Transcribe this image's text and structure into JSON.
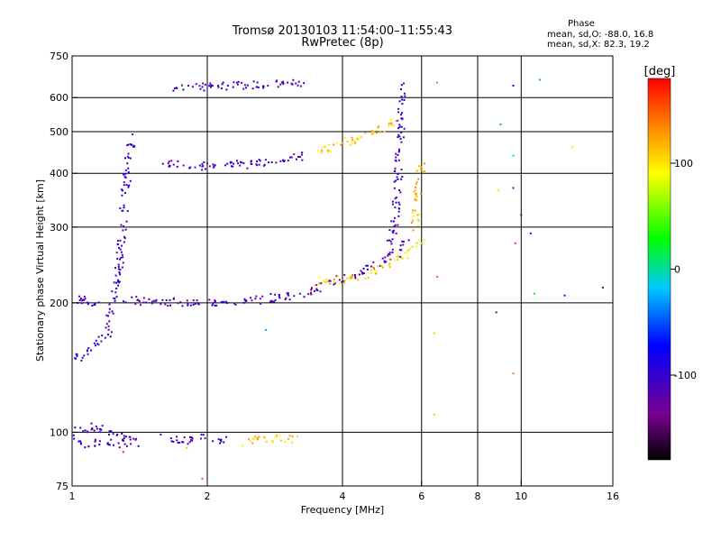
{
  "chart_data": {
    "type": "scatter",
    "title": "Tromsø 20130103 11:54:00–11:55:43",
    "subtitle": "RwPretec (8p)",
    "xlabel": "Frequency [MHz]",
    "ylabel": "Stationary phase Virtual Height [km]",
    "x_scale": "log",
    "y_scale": "log",
    "xlim": [
      1,
      16
    ],
    "ylim": [
      75,
      750
    ],
    "x_ticks": [
      "1",
      "2",
      "4",
      "6",
      "8",
      "10",
      "16"
    ],
    "x_tick_values": [
      1,
      2,
      4,
      6,
      8,
      10,
      16
    ],
    "x_grid_values": [
      2,
      4,
      6,
      8,
      10
    ],
    "y_ticks": [
      "75",
      "100",
      "200",
      "300",
      "400",
      "500",
      "600",
      "750"
    ],
    "y_tick_values": [
      75,
      100,
      200,
      300,
      400,
      500,
      600,
      750
    ],
    "y_grid_values": [
      100,
      200,
      300,
      400,
      500,
      600
    ],
    "grid": true,
    "stats": {
      "heading": "Phase",
      "line1": "mean, sd,O: -88.0, 16.8",
      "line2": "mean, sd,X:  82.3, 19.2"
    },
    "colorbar": {
      "label": "[deg]",
      "range": [
        -180,
        180
      ],
      "ticks": [
        "100",
        "0",
        "-100"
      ],
      "tick_values": [
        100,
        0,
        -100
      ]
    },
    "traces": [
      {
        "x": [
          1.0,
          1.05,
          1.1,
          1.2,
          1.27,
          1.32,
          1.36
        ],
        "y": [
          150,
          148,
          155,
          170,
          230,
          380,
          500
        ],
        "phase": -100
      },
      {
        "x": [
          1.0,
          1.05,
          1.1,
          1.15
        ],
        "y": [
          205,
          202,
          200,
          198
        ],
        "phase": -100
      },
      {
        "x": [
          1.3,
          1.4,
          1.6,
          2.0,
          2.5,
          3.0,
          3.5,
          4.0,
          4.5,
          5.0,
          5.3,
          5.6
        ],
        "y": [
          205,
          202,
          201,
          200,
          202,
          207,
          215,
          228,
          238,
          250,
          262,
          275
        ],
        "phase": -110
      },
      {
        "x": [
          3.5,
          4.0,
          4.5,
          5.0,
          5.5,
          6.0
        ],
        "y": [
          224,
          226,
          232,
          244,
          258,
          280
        ],
        "phase": 110
      },
      {
        "x": [
          5.1,
          5.25,
          5.35,
          5.4,
          5.45
        ],
        "y": [
          260,
          320,
          420,
          550,
          640
        ],
        "phase": -105
      },
      {
        "x": [
          5.8,
          5.9,
          6.0
        ],
        "y": [
          300,
          380,
          420
        ],
        "phase": 120
      },
      {
        "x": [
          1.6,
          2.0,
          2.5,
          3.0,
          3.3
        ],
        "y": [
          420,
          415,
          420,
          430,
          440
        ],
        "phase": -110
      },
      {
        "x": [
          3.5,
          4.0,
          4.5,
          5.0,
          5.3
        ],
        "y": [
          450,
          470,
          490,
          510,
          540
        ],
        "phase": 110
      },
      {
        "x": [
          1.7,
          2.0,
          2.5,
          3.0,
          3.3
        ],
        "y": [
          630,
          635,
          640,
          645,
          648
        ],
        "phase": -110
      },
      {
        "x": [
          1.0,
          1.1,
          1.2,
          1.3,
          1.4
        ],
        "y": [
          100,
          103,
          100,
          98,
          97
        ],
        "phase": -105
      },
      {
        "x": [
          1.0,
          1.1,
          1.2,
          1.3,
          1.4
        ],
        "y": [
          95,
          94,
          95,
          94,
          95
        ],
        "phase": -100
      },
      {
        "x": [
          1.6,
          1.8,
          2.0,
          2.2
        ],
        "y": [
          97,
          96,
          97,
          96
        ],
        "phase": -105
      },
      {
        "x": [
          2.5,
          3.0,
          3.2
        ],
        "y": [
          96,
          97,
          96
        ],
        "phase": 110
      }
    ],
    "scattered_points": [
      {
        "x": 6.5,
        "y": 650,
        "phase": 140
      },
      {
        "x": 9.6,
        "y": 640,
        "phase": -80
      },
      {
        "x": 11.0,
        "y": 660,
        "phase": -30
      },
      {
        "x": 9.0,
        "y": 520,
        "phase": -30
      },
      {
        "x": 9.6,
        "y": 440,
        "phase": 20
      },
      {
        "x": 13.0,
        "y": 460,
        "phase": 100
      },
      {
        "x": 9.6,
        "y": 370,
        "phase": -60
      },
      {
        "x": 8.9,
        "y": 365,
        "phase": 100
      },
      {
        "x": 10.0,
        "y": 320,
        "phase": -150
      },
      {
        "x": 10.5,
        "y": 290,
        "phase": -100
      },
      {
        "x": 9.7,
        "y": 275,
        "phase": 160
      },
      {
        "x": 6.5,
        "y": 230,
        "phase": 150
      },
      {
        "x": 10.7,
        "y": 210,
        "phase": 30
      },
      {
        "x": 12.5,
        "y": 208,
        "phase": -110
      },
      {
        "x": 15.2,
        "y": 217,
        "phase": -150
      },
      {
        "x": 8.8,
        "y": 190,
        "phase": -120
      },
      {
        "x": 9.6,
        "y": 137,
        "phase": 140
      },
      {
        "x": 6.4,
        "y": 110,
        "phase": 110
      },
      {
        "x": 6.4,
        "y": 170,
        "phase": 110
      },
      {
        "x": 2.7,
        "y": 173,
        "phase": -30
      },
      {
        "x": 1.95,
        "y": 78,
        "phase": 150
      },
      {
        "x": 1.3,
        "y": 90,
        "phase": 170
      },
      {
        "x": 2.4,
        "y": 93,
        "phase": 80
      },
      {
        "x": 1.8,
        "y": 92,
        "phase": 60
      }
    ]
  }
}
